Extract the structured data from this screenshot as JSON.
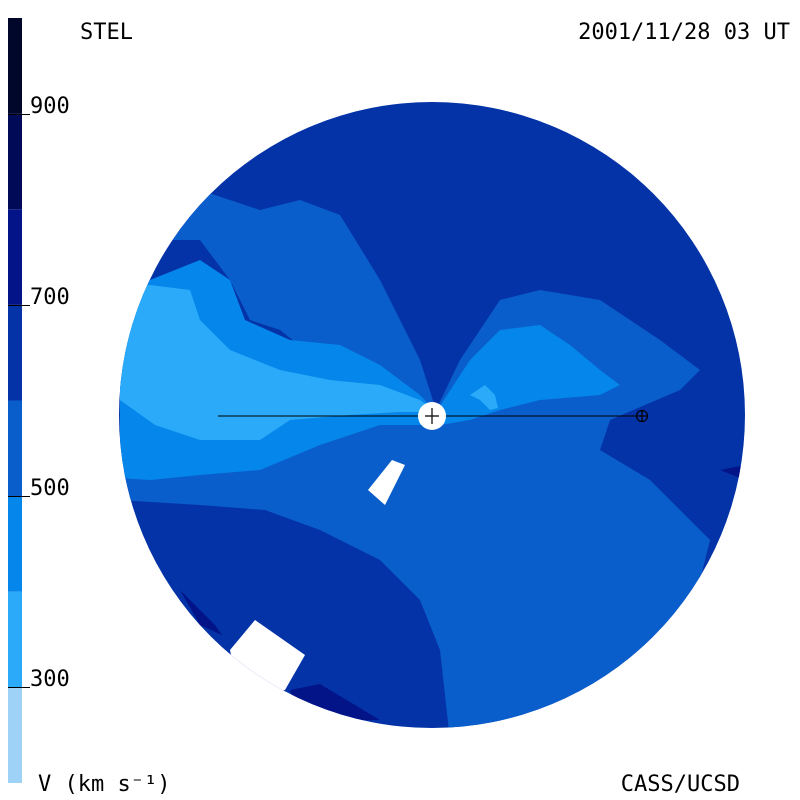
{
  "header": {
    "left_label": "STEL",
    "right_label": "2001/11/28 03 UT"
  },
  "footer": {
    "left_label": "V (km s⁻¹)",
    "right_label": "CASS/UCSD"
  },
  "colorbar": {
    "quantity": "V",
    "unit": "km s⁻¹",
    "ticks": [
      {
        "value": 900,
        "label": "900"
      },
      {
        "value": 700,
        "label": "700"
      },
      {
        "value": 500,
        "label": "500"
      },
      {
        "value": 300,
        "label": "300"
      }
    ],
    "levels": [
      {
        "min": 200,
        "max": 300,
        "color": "#9ed3f7"
      },
      {
        "min": 300,
        "max": 400,
        "color": "#2aaaf8"
      },
      {
        "min": 400,
        "max": 500,
        "color": "#0586ea"
      },
      {
        "min": 500,
        "max": 600,
        "color": "#0a5ecb"
      },
      {
        "min": 600,
        "max": 700,
        "color": "#0433a8"
      },
      {
        "min": 700,
        "max": 800,
        "color": "#021487"
      },
      {
        "min": 800,
        "max": 900,
        "color": "#010a57"
      },
      {
        "min": 900,
        "max": 1000,
        "color": "#00072a"
      }
    ]
  },
  "map": {
    "background_color": "#0433a8",
    "markers": [
      {
        "name": "sun",
        "symbol": "⊙"
      },
      {
        "name": "earth",
        "symbol": "⊕"
      }
    ]
  }
}
